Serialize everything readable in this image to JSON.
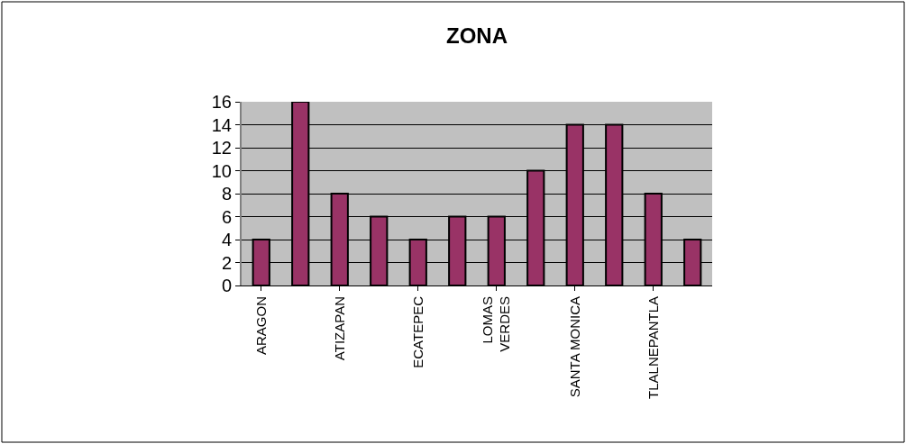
{
  "chart_data": {
    "type": "bar",
    "title": "ZONA",
    "categories": [
      "ARAGON",
      null,
      "ATIZAPAN",
      null,
      "ECATEPEC",
      null,
      "LOMAS\nVERDES",
      null,
      "SANTA MONICA",
      null,
      "TLALNEPANTLA",
      null
    ],
    "values": [
      4,
      16,
      8,
      6,
      4,
      6,
      6,
      10,
      14,
      14,
      8,
      4
    ],
    "color": "#993366",
    "ylim": [
      0,
      16
    ],
    "yticks": [
      0,
      2,
      4,
      6,
      8,
      10,
      12,
      14,
      16
    ],
    "grid": "y"
  }
}
